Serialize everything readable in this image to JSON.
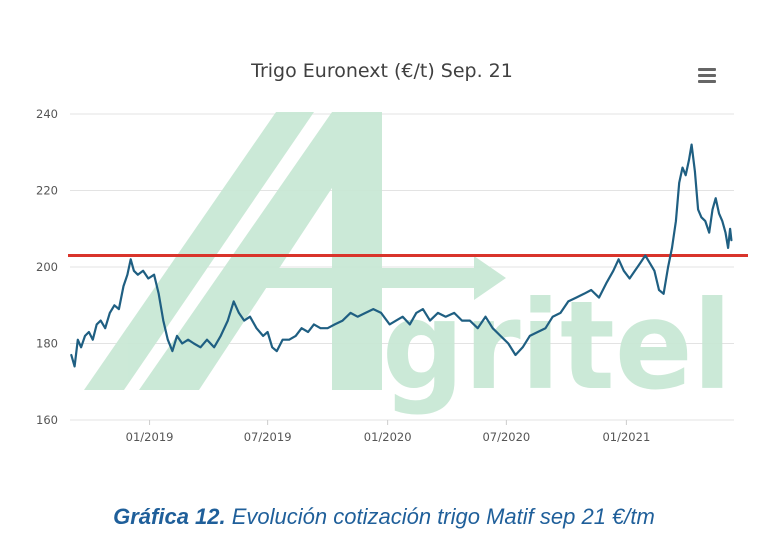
{
  "chart": {
    "title": "Trigo Euronext (€/t) Sep. 21",
    "menu_icon": "hamburger-menu-icon",
    "watermark": "Agritel"
  },
  "caption": {
    "bold": "Gráfica 12.",
    "text": " Evolución cotización trigo Matif sep 21 €/tm"
  },
  "colors": {
    "series_line": "#1f5f82",
    "reference_line": "#d9342b",
    "watermark": "#c9e8d5",
    "caption": "#1f5f9a"
  },
  "chart_data": {
    "type": "line",
    "title": "Trigo Euronext (€/t) Sep. 21",
    "xlabel": "",
    "ylabel": "",
    "ylim": [
      160,
      240
    ],
    "xlim": [
      "2018-09-01",
      "2021-06-15"
    ],
    "grid": true,
    "y_ticks": [
      "160",
      "180",
      "200",
      "220",
      "240"
    ],
    "x_ticks": [
      {
        "label": "01/2019",
        "date": "2019-01-01"
      },
      {
        "label": "07/2019",
        "date": "2019-07-01"
      },
      {
        "label": "01/2020",
        "date": "2020-01-01"
      },
      {
        "label": "07/2020",
        "date": "2020-07-01"
      },
      {
        "label": "01/2021",
        "date": "2021-01-01"
      }
    ],
    "reference_line": {
      "y": 203
    },
    "series": [
      {
        "values": [
          [
            "2018-09-03",
            177
          ],
          [
            "2018-09-08",
            174
          ],
          [
            "2018-09-13",
            181
          ],
          [
            "2018-09-18",
            179
          ],
          [
            "2018-09-24",
            182
          ],
          [
            "2018-09-30",
            183
          ],
          [
            "2018-10-06",
            181
          ],
          [
            "2018-10-12",
            185
          ],
          [
            "2018-10-18",
            186
          ],
          [
            "2018-10-25",
            184
          ],
          [
            "2018-11-01",
            188
          ],
          [
            "2018-11-08",
            190
          ],
          [
            "2018-11-15",
            189
          ],
          [
            "2018-11-22",
            195
          ],
          [
            "2018-11-28",
            198
          ],
          [
            "2018-12-03",
            202
          ],
          [
            "2018-12-08",
            199
          ],
          [
            "2018-12-14",
            198
          ],
          [
            "2018-12-22",
            199
          ],
          [
            "2018-12-30",
            197
          ],
          [
            "2019-01-08",
            198
          ],
          [
            "2019-01-15",
            193
          ],
          [
            "2019-01-22",
            186
          ],
          [
            "2019-01-29",
            181
          ],
          [
            "2019-02-05",
            178
          ],
          [
            "2019-02-12",
            182
          ],
          [
            "2019-02-20",
            180
          ],
          [
            "2019-03-01",
            181
          ],
          [
            "2019-03-10",
            180
          ],
          [
            "2019-03-20",
            179
          ],
          [
            "2019-03-30",
            181
          ],
          [
            "2019-04-10",
            179
          ],
          [
            "2019-04-20",
            182
          ],
          [
            "2019-05-01",
            186
          ],
          [
            "2019-05-10",
            191
          ],
          [
            "2019-05-18",
            188
          ],
          [
            "2019-05-26",
            186
          ],
          [
            "2019-06-04",
            187
          ],
          [
            "2019-06-14",
            184
          ],
          [
            "2019-06-24",
            182
          ],
          [
            "2019-07-01",
            183
          ],
          [
            "2019-07-08",
            179
          ],
          [
            "2019-07-15",
            178
          ],
          [
            "2019-07-24",
            181
          ],
          [
            "2019-08-03",
            181
          ],
          [
            "2019-08-13",
            182
          ],
          [
            "2019-08-22",
            184
          ],
          [
            "2019-09-01",
            183
          ],
          [
            "2019-09-10",
            185
          ],
          [
            "2019-09-20",
            184
          ],
          [
            "2019-10-01",
            184
          ],
          [
            "2019-10-12",
            185
          ],
          [
            "2019-10-24",
            186
          ],
          [
            "2019-11-05",
            188
          ],
          [
            "2019-11-16",
            187
          ],
          [
            "2019-11-28",
            188
          ],
          [
            "2019-12-10",
            189
          ],
          [
            "2019-12-22",
            188
          ],
          [
            "2020-01-04",
            185
          ],
          [
            "2020-01-14",
            186
          ],
          [
            "2020-01-24",
            187
          ],
          [
            "2020-02-04",
            185
          ],
          [
            "2020-02-14",
            188
          ],
          [
            "2020-02-24",
            189
          ],
          [
            "2020-03-06",
            186
          ],
          [
            "2020-03-18",
            188
          ],
          [
            "2020-03-30",
            187
          ],
          [
            "2020-04-12",
            188
          ],
          [
            "2020-04-24",
            186
          ],
          [
            "2020-05-06",
            186
          ],
          [
            "2020-05-18",
            184
          ],
          [
            "2020-05-30",
            187
          ],
          [
            "2020-06-10",
            184
          ],
          [
            "2020-06-22",
            182
          ],
          [
            "2020-07-04",
            180
          ],
          [
            "2020-07-15",
            177
          ],
          [
            "2020-07-26",
            179
          ],
          [
            "2020-08-06",
            182
          ],
          [
            "2020-08-18",
            183
          ],
          [
            "2020-08-30",
            184
          ],
          [
            "2020-09-10",
            187
          ],
          [
            "2020-09-22",
            188
          ],
          [
            "2020-10-04",
            191
          ],
          [
            "2020-10-16",
            192
          ],
          [
            "2020-10-28",
            193
          ],
          [
            "2020-11-08",
            194
          ],
          [
            "2020-11-20",
            192
          ],
          [
            "2020-12-02",
            196
          ],
          [
            "2020-12-12",
            199
          ],
          [
            "2020-12-20",
            202
          ],
          [
            "2020-12-28",
            199
          ],
          [
            "2021-01-06",
            197
          ],
          [
            "2021-01-14",
            199
          ],
          [
            "2021-01-22",
            201
          ],
          [
            "2021-01-30",
            203
          ],
          [
            "2021-02-06",
            201
          ],
          [
            "2021-02-13",
            199
          ],
          [
            "2021-02-20",
            194
          ],
          [
            "2021-02-27",
            193
          ],
          [
            "2021-03-06",
            200
          ],
          [
            "2021-03-12",
            205
          ],
          [
            "2021-03-18",
            212
          ],
          [
            "2021-03-23",
            222
          ],
          [
            "2021-03-28",
            226
          ],
          [
            "2021-04-02",
            224
          ],
          [
            "2021-04-07",
            228
          ],
          [
            "2021-04-11",
            232
          ],
          [
            "2021-04-16",
            225
          ],
          [
            "2021-04-21",
            215
          ],
          [
            "2021-04-26",
            213
          ],
          [
            "2021-05-02",
            212
          ],
          [
            "2021-05-08",
            209
          ],
          [
            "2021-05-13",
            215
          ],
          [
            "2021-05-18",
            218
          ],
          [
            "2021-05-23",
            214
          ],
          [
            "2021-05-28",
            212
          ],
          [
            "2021-06-02",
            209
          ],
          [
            "2021-06-06",
            205
          ],
          [
            "2021-06-09",
            210
          ],
          [
            "2021-06-11",
            207
          ]
        ]
      }
    ]
  }
}
